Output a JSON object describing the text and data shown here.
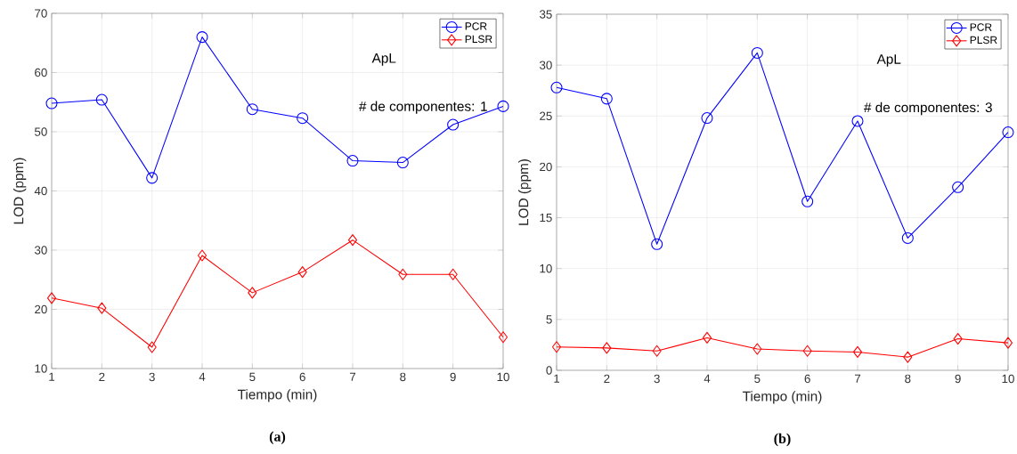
{
  "chart_data": [
    {
      "type": "line",
      "title": "(a)",
      "xlabel": "Tiempo (min)",
      "ylabel": "LOD (ppm)",
      "annotations": [
        "ApL",
        "# de componentes: 1"
      ],
      "x": [
        1,
        2,
        3,
        4,
        5,
        6,
        7,
        8,
        9,
        10
      ],
      "xlim": [
        1,
        10
      ],
      "xticks": [
        1,
        2,
        3,
        4,
        5,
        6,
        7,
        8,
        9,
        10
      ],
      "ylim": [
        10,
        70
      ],
      "yticks": [
        10,
        20,
        30,
        40,
        50,
        60,
        70
      ],
      "grid": true,
      "legend": "top right",
      "line_style": "solid",
      "series": [
        {
          "name": "PCR",
          "color": "#0000ff",
          "marker": "circle",
          "values": [
            54.8,
            55.4,
            42.2,
            66.0,
            53.8,
            52.3,
            45.1,
            44.8,
            51.2,
            54.3
          ]
        },
        {
          "name": "PLSR",
          "color": "#ff0000",
          "marker": "diamond",
          "values": [
            21.9,
            20.2,
            13.6,
            29.1,
            22.8,
            26.3,
            31.7,
            25.9,
            25.9,
            15.3
          ]
        }
      ]
    },
    {
      "type": "line",
      "title": "(b)",
      "xlabel": "Tiempo (min)",
      "ylabel": "LOD (ppm)",
      "annotations": [
        "ApL",
        "# de componentes: 3"
      ],
      "x": [
        1,
        2,
        3,
        4,
        5,
        6,
        7,
        8,
        9,
        10
      ],
      "xlim": [
        1,
        10
      ],
      "xticks": [
        1,
        2,
        3,
        4,
        5,
        6,
        7,
        8,
        9,
        10
      ],
      "ylim": [
        0,
        35
      ],
      "yticks": [
        0,
        5,
        10,
        15,
        20,
        25,
        30,
        35
      ],
      "grid": true,
      "legend": "top right",
      "line_style": "solid",
      "series": [
        {
          "name": "PCR",
          "color": "#0000ff",
          "marker": "circle",
          "values": [
            27.8,
            26.7,
            12.4,
            24.8,
            31.2,
            16.6,
            24.5,
            13.0,
            18.0,
            23.4
          ]
        },
        {
          "name": "PLSR",
          "color": "#ff0000",
          "marker": "diamond",
          "values": [
            2.3,
            2.2,
            1.9,
            3.2,
            2.1,
            1.9,
            1.8,
            1.3,
            3.1,
            2.7
          ]
        }
      ]
    }
  ]
}
